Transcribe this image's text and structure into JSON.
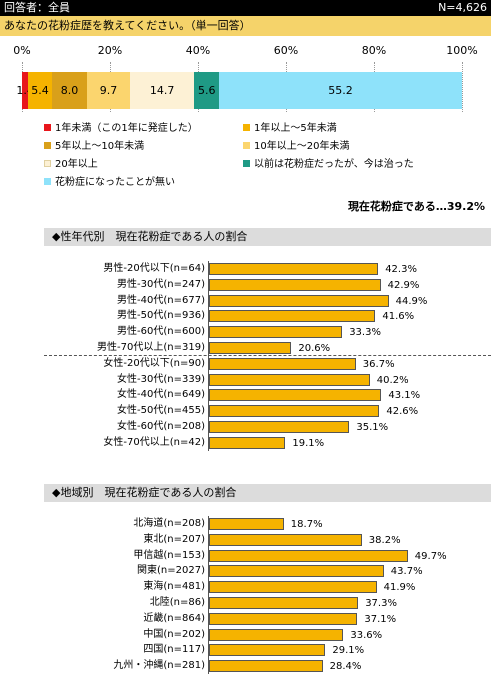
{
  "header": {
    "left": "回答者：全員",
    "right": "N=4,626"
  },
  "question": "あなたの花粉症歴を教えてください。（単一回答）",
  "colors": {
    "header_bg": "#000000",
    "question_bg": "#f5d36a",
    "bar": "#f5b300",
    "section_bg": "#dcdcdc"
  },
  "chart_data": [
    {
      "type": "bar",
      "orientation": "horizontal-stacked",
      "title": "あなたの花粉症歴を教えてください。（単一回答）",
      "xlim": [
        0,
        100
      ],
      "xticks": [
        "0%",
        "20%",
        "40%",
        "60%",
        "80%",
        "100%"
      ],
      "grid": true,
      "legend_position": "bottom",
      "segments": [
        {
          "name": "1年未満（この1年に発症した）",
          "value": 1.4,
          "label": "1.4",
          "color": "#e8161b"
        },
        {
          "name": "1年以上～5年未満",
          "value": 5.4,
          "label": "5.4",
          "color": "#f5b300"
        },
        {
          "name": "5年以上～10年未満",
          "value": 8.0,
          "label": "8.0",
          "color": "#d9a01a"
        },
        {
          "name": "10年以上～20年未満",
          "value": 9.7,
          "label": "9.7",
          "color": "#fbd56e"
        },
        {
          "name": "20年以上",
          "value": 14.7,
          "label": "14.7",
          "color": "#fdf1d5"
        },
        {
          "name": "以前は花粉症だったが、今は治った",
          "value": 5.6,
          "label": "5.6",
          "color": "#1f9a85"
        },
        {
          "name": "花粉症になったことが無い",
          "value": 55.2,
          "label": "55.2",
          "color": "#8ee2fa"
        }
      ],
      "summary": "現在花粉症である…39.2%"
    },
    {
      "type": "bar",
      "orientation": "horizontal",
      "title": "◆性年代別　現在花粉症である人の割合",
      "categories": [
        "男性-20代以下(n=64)",
        "男性-30代(n=247)",
        "男性-40代(n=677)",
        "男性-50代(n=936)",
        "男性-60代(n=600)",
        "男性-70代以上(n=319)",
        "女性-20代以下(n=90)",
        "女性-30代(n=339)",
        "女性-40代(n=649)",
        "女性-50代(n=455)",
        "女性-60代(n=208)",
        "女性-70代以上(n=42)"
      ],
      "values": [
        42.3,
        42.9,
        44.9,
        41.6,
        33.3,
        20.6,
        36.7,
        40.2,
        43.1,
        42.6,
        35.1,
        19.1
      ],
      "labels": [
        "42.3%",
        "42.9%",
        "44.9%",
        "41.6%",
        "33.3%",
        "20.6%",
        "36.7%",
        "40.2%",
        "43.1%",
        "42.6%",
        "35.1%",
        "19.1%"
      ],
      "xlim": [
        0,
        100
      ]
    },
    {
      "type": "bar",
      "orientation": "horizontal",
      "title": "◆地域別　現在花粉症である人の割合",
      "categories": [
        "北海道(n=208)",
        "東北(n=207)",
        "甲信越(n=153)",
        "関東(n=2027)",
        "東海(n=481)",
        "北陸(n=86)",
        "近畿(n=864)",
        "中国(n=202)",
        "四国(n=117)",
        "九州・沖縄(n=281)"
      ],
      "values": [
        18.7,
        38.2,
        49.7,
        43.7,
        41.9,
        37.3,
        37.1,
        33.6,
        29.1,
        28.4
      ],
      "labels": [
        "18.7%",
        "38.2%",
        "49.7%",
        "43.7%",
        "41.9%",
        "37.3%",
        "37.1%",
        "33.6%",
        "29.1%",
        "28.4%"
      ],
      "xlim": [
        0,
        100
      ]
    }
  ]
}
